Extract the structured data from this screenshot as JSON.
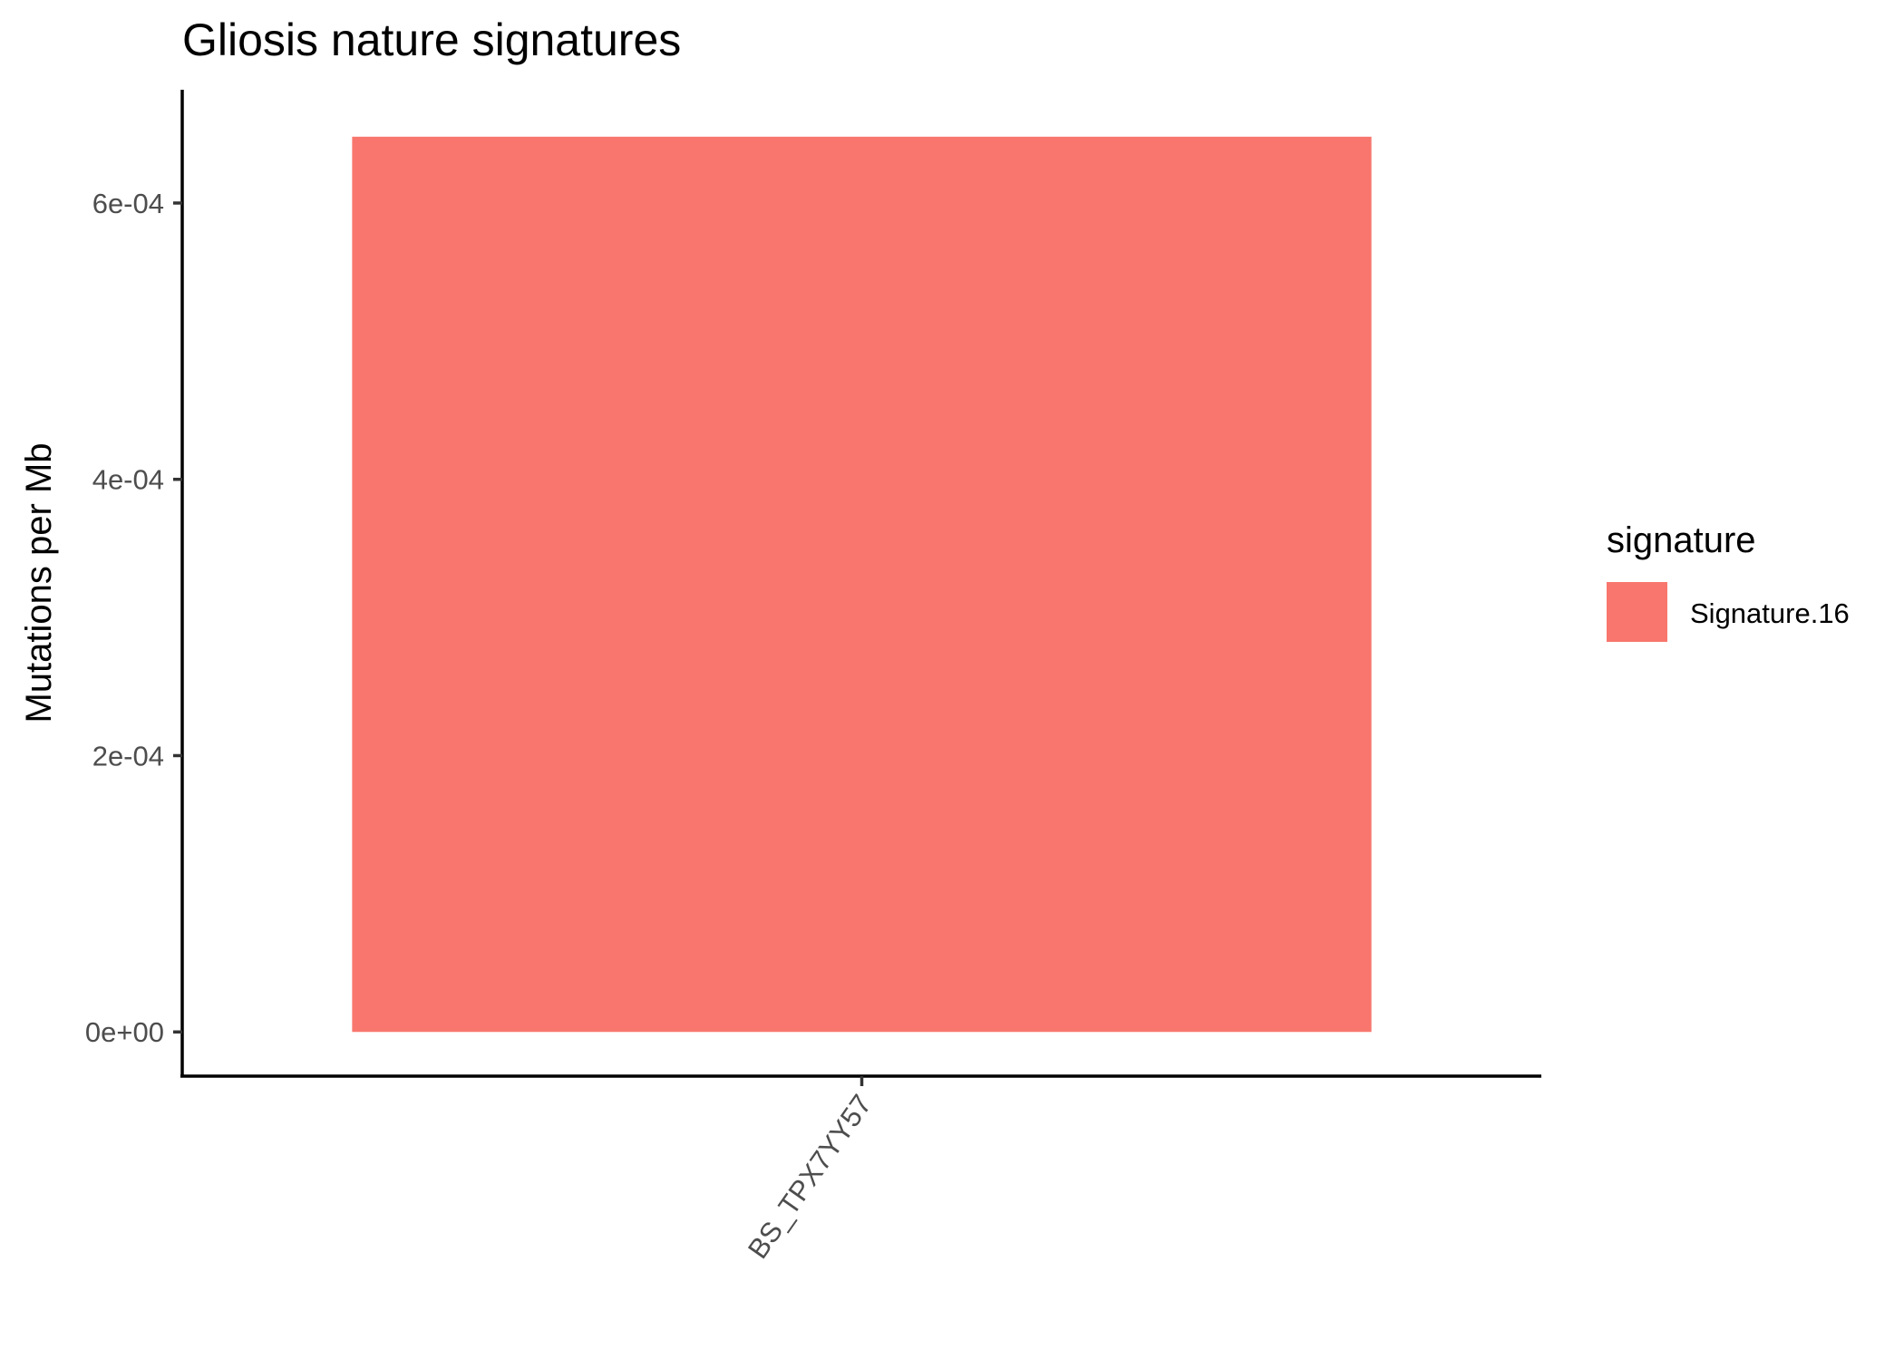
{
  "chart_data": {
    "type": "bar",
    "title": "Gliosis nature signatures",
    "xlabel": "",
    "ylabel": "Mutations per Mb",
    "categories": [
      "BS_TPX7YY57"
    ],
    "series": [
      {
        "name": "Signature.16",
        "values": [
          0.000648
        ],
        "color": "#F8766D"
      }
    ],
    "ylim": [
      -3.2e-05,
      0.000682
    ],
    "yticks": [
      0,
      0.0002,
      0.0004,
      0.0006
    ],
    "ytick_labels": [
      "0e+00",
      "2e-04",
      "4e-04",
      "6e-04"
    ],
    "grid": false,
    "legend": {
      "title": "signature",
      "placement": "right"
    }
  }
}
